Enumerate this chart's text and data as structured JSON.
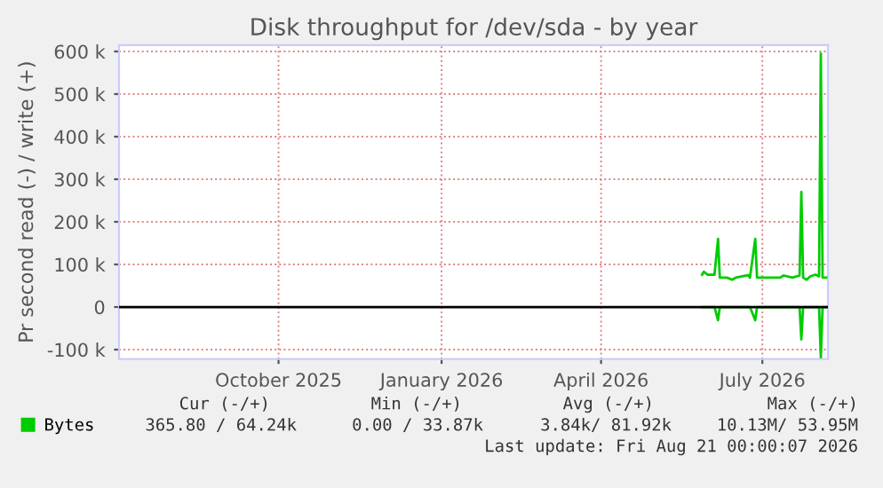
{
  "chart_data": {
    "type": "line",
    "title": "Disk throughput for /dev/sda - by year",
    "ylabel": "Pr second read (-) / write (+)",
    "x": [
      "2026-05-28",
      "2026-05-29",
      "2026-05-31",
      "2026-06-04",
      "2026-06-06",
      "2026-06-07",
      "2026-06-11",
      "2026-06-14",
      "2026-06-16",
      "2026-06-23",
      "2026-06-24",
      "2026-06-27",
      "2026-06-28",
      "2026-07-11",
      "2026-07-13",
      "2026-07-18",
      "2026-07-22",
      "2026-07-23",
      "2026-07-24",
      "2026-07-26",
      "2026-07-28",
      "2026-07-31",
      "2026-08-02",
      "2026-08-03",
      "2026-08-04",
      "2026-08-06"
    ],
    "series": [
      {
        "name": "Bytes",
        "color": "#00cc00",
        "values": [
          76000,
          83000,
          76000,
          76000,
          160000,
          69000,
          69000,
          64000,
          69000,
          75000,
          69000,
          160000,
          69000,
          69000,
          74000,
          69000,
          74000,
          270000,
          69000,
          64000,
          72000,
          76000,
          72000,
          595000,
          69000,
          69000
        ]
      },
      {
        "color": "#00cc00",
        "values": [
          0,
          0,
          0,
          0,
          -31000,
          0,
          0,
          0,
          0,
          0,
          0,
          -31000,
          0,
          0,
          0,
          0,
          0,
          -76000,
          0,
          0,
          0,
          0,
          0,
          -118000,
          0,
          0
        ]
      }
    ],
    "xlim": [
      "2025-07-03",
      "2026-08-07"
    ],
    "xticks": [
      {
        "value": "2025-10-01",
        "label": "October 2025"
      },
      {
        "value": "2026-01-01",
        "label": "January 2026"
      },
      {
        "value": "2026-04-01",
        "label": "April 2026"
      },
      {
        "value": "2026-07-01",
        "label": "July 2026"
      }
    ],
    "ylim": [
      -122000,
      615000
    ],
    "yticks": [
      {
        "value": -100000,
        "label": "-100 k"
      },
      0,
      {
        "value": 100000,
        "label": "100 k"
      },
      {
        "value": 200000,
        "label": "200 k"
      },
      {
        "value": 300000,
        "label": "300 k"
      },
      {
        "value": 400000,
        "label": "400 k"
      },
      {
        "value": 500000,
        "label": "500 k"
      },
      {
        "value": 600000,
        "label": "600 k"
      }
    ],
    "ref_lines": [
      {
        "axis": "y",
        "value": 0,
        "color": "#000000"
      }
    ],
    "grid": true,
    "legend": "bottom left",
    "annotations": [
      "Cur (-/+)",
      "Min (-/+)",
      "Avg (-/+)",
      "Max (-/+)",
      "365.80 / 64.24k",
      "0.00 / 33.87k",
      "3.84k/ 81.92k",
      "10.13M/ 53.95M",
      "Last update: Fri Aug 21 00:00:07 2026"
    ]
  }
}
